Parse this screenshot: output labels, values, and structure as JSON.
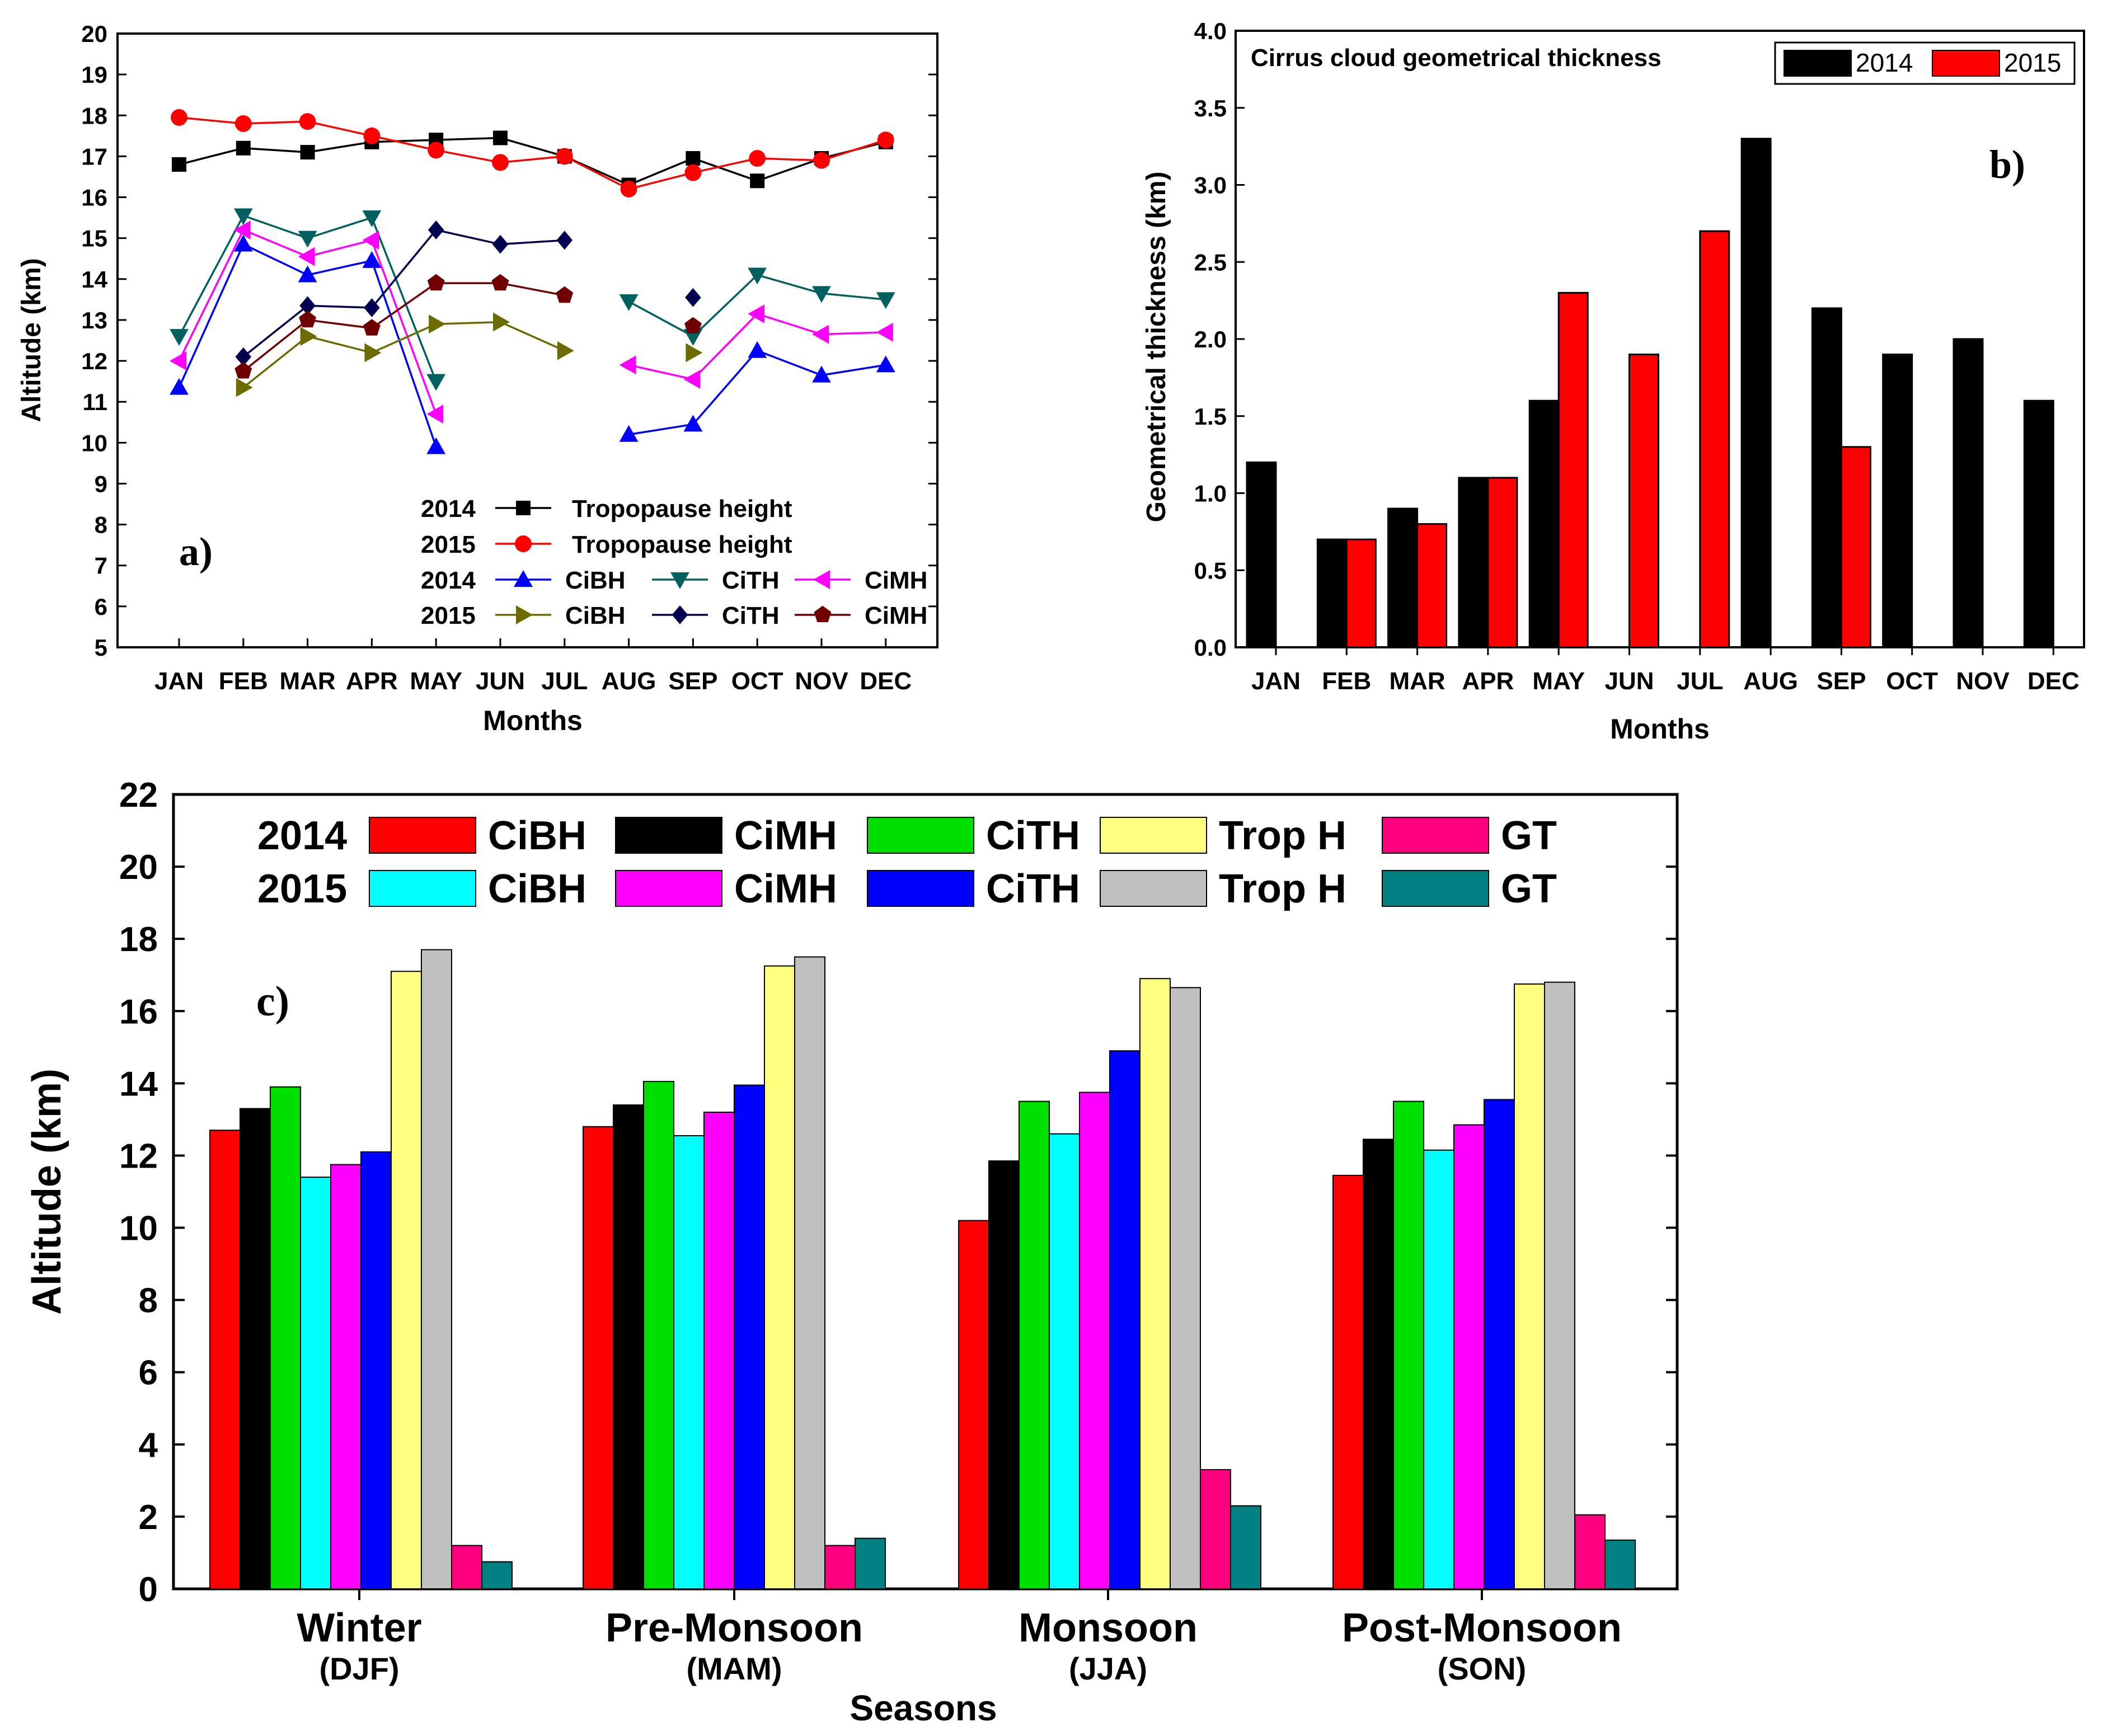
{
  "months": [
    "JAN",
    "FEB",
    "MAR",
    "APR",
    "MAY",
    "JUN",
    "JUL",
    "AUG",
    "SEP",
    "OCT",
    "NOV",
    "DEC"
  ],
  "chart_data": [
    {
      "panel": "a)",
      "type": "line",
      "xlabel": "Months",
      "ylabel": "Altitude (km)",
      "ylim": [
        5,
        20
      ],
      "yticks": [
        "5",
        "6",
        "7",
        "8",
        "9",
        "10",
        "11",
        "12",
        "13",
        "14",
        "15",
        "16",
        "17",
        "18",
        "19",
        "20"
      ],
      "legend": [
        {
          "year": "2014",
          "label": "Tropopause height"
        },
        {
          "year": "2015",
          "label": "Tropopause height"
        },
        {
          "year": "2014",
          "labels": [
            "CiBH",
            "CiTH",
            "CiMH"
          ]
        },
        {
          "year": "2015",
          "labels": [
            "CiBH",
            "CiTH",
            "CiMH"
          ]
        }
      ],
      "series": [
        {
          "name": "2014 Tropopause height",
          "color": "#000000",
          "marker": "square",
          "values": [
            16.8,
            17.2,
            17.1,
            17.35,
            17.4,
            17.45,
            17.0,
            16.3,
            16.95,
            16.4,
            16.95,
            17.35
          ]
        },
        {
          "name": "2015 Tropopause height",
          "color": "#ff0000",
          "marker": "circle",
          "values": [
            17.95,
            17.8,
            17.85,
            17.5,
            17.15,
            16.85,
            17.0,
            16.2,
            16.6,
            16.95,
            16.9,
            17.4
          ]
        },
        {
          "name": "2014 CiBH",
          "color": "#0000ff",
          "marker": "triangle-up",
          "values": [
            11.35,
            14.85,
            14.1,
            14.45,
            9.9,
            null,
            null,
            10.2,
            10.45,
            12.25,
            11.65,
            11.9
          ]
        },
        {
          "name": "2014 CiTH",
          "color": "#006060",
          "marker": "triangle-down",
          "values": [
            12.6,
            15.55,
            15.0,
            15.5,
            11.5,
            null,
            null,
            13.45,
            12.6,
            14.1,
            13.65,
            13.5
          ]
        },
        {
          "name": "2014 CiMH",
          "color": "#ff00ff",
          "marker": "triangle-left",
          "values": [
            12.0,
            15.2,
            14.55,
            14.95,
            10.7,
            null,
            null,
            11.9,
            11.55,
            13.15,
            12.65,
            12.7
          ]
        },
        {
          "name": "2015 CiBH",
          "color": "#6b6b00",
          "marker": "triangle-right",
          "values": [
            null,
            11.35,
            12.6,
            12.2,
            12.9,
            12.95,
            12.25,
            null,
            12.2,
            null,
            null,
            null
          ]
        },
        {
          "name": "2015 CiTH",
          "color": "#000050",
          "marker": "diamond",
          "values": [
            null,
            12.1,
            13.35,
            13.3,
            15.2,
            14.85,
            14.95,
            null,
            13.55,
            null,
            null,
            null
          ]
        },
        {
          "name": "2015 CiMH",
          "color": "#700000",
          "marker": "pentagon",
          "values": [
            null,
            11.75,
            13.0,
            12.8,
            13.9,
            13.9,
            13.6,
            null,
            12.85,
            null,
            null,
            null
          ]
        }
      ]
    },
    {
      "panel": "b)",
      "type": "bar",
      "title": "Cirrus cloud geometrical thickness",
      "xlabel": "Months",
      "ylabel": "Geometrical thickness (km)",
      "ylim": [
        0,
        4
      ],
      "yticks": [
        "0.0",
        "0.5",
        "1.0",
        "1.5",
        "2.0",
        "2.5",
        "3.0",
        "3.5",
        "4.0"
      ],
      "series": [
        {
          "name": "2014",
          "color": "#000000",
          "values": [
            1.2,
            0.7,
            0.9,
            1.1,
            1.6,
            null,
            null,
            3.3,
            2.2,
            1.9,
            2.0,
            1.6
          ]
        },
        {
          "name": "2015",
          "color": "#ff0000",
          "values": [
            null,
            0.7,
            0.8,
            1.1,
            2.3,
            1.9,
            2.7,
            null,
            1.3,
            null,
            null,
            null
          ]
        }
      ]
    },
    {
      "panel": "c)",
      "type": "bar",
      "xlabel": "Seasons",
      "ylabel": "Altitude (km)",
      "ylim": [
        0,
        22
      ],
      "yticks": [
        "0",
        "2",
        "4",
        "6",
        "8",
        "10",
        "12",
        "14",
        "16",
        "18",
        "20",
        "22"
      ],
      "categories": [
        "Winter",
        "Pre-Monsoon",
        "Monsoon",
        "Post-Monsoon"
      ],
      "subcategories": [
        "(DJF)",
        "(MAM)",
        "(JJA)",
        "(SON)"
      ],
      "legend_years": [
        "2014",
        "2015"
      ],
      "series": [
        {
          "year": "2014",
          "name": "CiBH",
          "color": "#ff0000",
          "values": [
            12.7,
            12.8,
            10.2,
            11.45
          ]
        },
        {
          "year": "2014",
          "name": "CiMH",
          "color": "#000000",
          "values": [
            13.3,
            13.4,
            11.85,
            12.45
          ]
        },
        {
          "year": "2014",
          "name": "CiTH",
          "color": "#00e000",
          "values": [
            13.9,
            14.05,
            13.5,
            13.5
          ]
        },
        {
          "year": "2015",
          "name": "CiBH",
          "color": "#00ffff",
          "values": [
            11.4,
            12.55,
            12.6,
            12.15
          ]
        },
        {
          "year": "2015",
          "name": "CiMH",
          "color": "#ff00ff",
          "values": [
            11.75,
            13.2,
            13.75,
            12.85
          ]
        },
        {
          "year": "2015",
          "name": "CiTH",
          "color": "#0000ff",
          "values": [
            12.1,
            13.95,
            14.9,
            13.55
          ]
        },
        {
          "year": "2014",
          "name": "Trop H",
          "color": "#ffff80",
          "values": [
            17.1,
            17.25,
            16.9,
            16.75
          ]
        },
        {
          "year": "2015",
          "name": "Trop H",
          "color": "#c0c0c0",
          "values": [
            17.7,
            17.5,
            16.65,
            16.8
          ]
        },
        {
          "year": "2014",
          "name": "GT",
          "color": "#ff0080",
          "values": [
            1.2,
            1.2,
            3.3,
            2.05
          ]
        },
        {
          "year": "2015",
          "name": "GT",
          "color": "#008080",
          "values": [
            0.75,
            1.4,
            2.3,
            1.35
          ]
        }
      ]
    }
  ]
}
